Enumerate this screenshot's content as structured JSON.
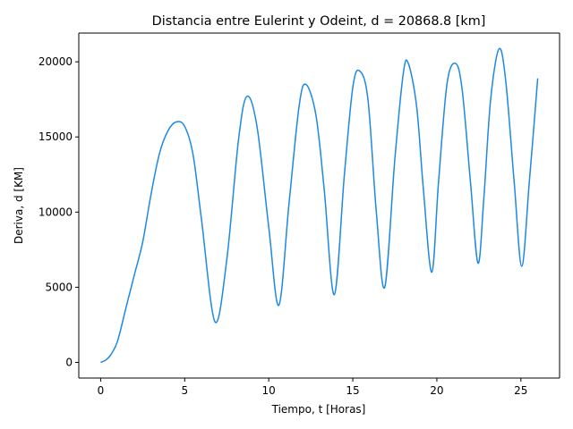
{
  "chart_data": {
    "type": "line",
    "title": "Distancia entre Eulerint y Odeint, d = 20868.8 [km]",
    "xlabel": "Tiempo, t [Horas]",
    "ylabel": "Deriva, d [KM]",
    "xlim": [
      -1.3,
      27.3
    ],
    "ylim": [
      -1043,
      21912
    ],
    "x_ticks": [
      0,
      5,
      10,
      15,
      20,
      25
    ],
    "x_tick_labels": [
      "0",
      "5",
      "10",
      "15",
      "20",
      "25"
    ],
    "y_ticks": [
      0,
      5000,
      10000,
      15000,
      20000
    ],
    "y_tick_labels": [
      "0",
      "5000",
      "10000",
      "15000",
      "20000"
    ],
    "grid": false,
    "series": [
      {
        "color": "#1e88e5",
        "x": [
          0,
          0.3,
          0.6,
          1.0,
          1.5,
          2.0,
          2.5,
          3.0,
          3.5,
          4.0,
          4.5,
          5.0,
          5.5,
          6.0,
          6.8,
          7.5,
          8.2,
          8.7,
          9.3,
          10.0,
          10.6,
          11.2,
          11.8,
          12.2,
          12.8,
          13.3,
          13.9,
          14.5,
          15.0,
          15.4,
          15.9,
          16.4,
          16.9,
          17.5,
          18.0,
          18.3,
          18.8,
          19.2,
          19.7,
          20.1,
          20.6,
          21.1,
          21.5,
          22.0,
          22.45,
          22.8,
          23.2,
          23.7,
          24.1,
          24.6,
          25.05,
          25.5,
          26.0
        ],
        "y": [
          0,
          150,
          500,
          1400,
          3600,
          5800,
          8000,
          11200,
          13900,
          15400,
          16000,
          15700,
          13800,
          9500,
          2700,
          6800,
          14800,
          17700,
          15700,
          9000,
          3800,
          10500,
          17000,
          18500,
          16500,
          11500,
          4500,
          12500,
          18300,
          19400,
          17500,
          10000,
          5000,
          13500,
          19200,
          19900,
          17000,
          11500,
          6000,
          12000,
          18500,
          19900,
          18200,
          12000,
          6600,
          11000,
          17500,
          20860,
          18700,
          12000,
          6400,
          12000,
          18900
        ]
      }
    ]
  }
}
